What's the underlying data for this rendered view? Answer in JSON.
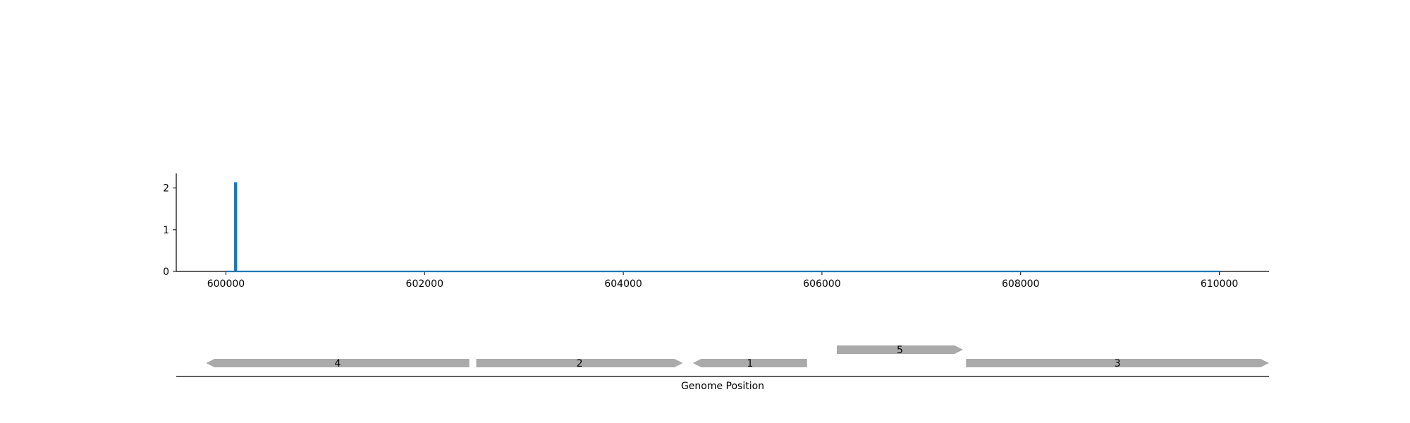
{
  "chart_data": [
    {
      "type": "line",
      "title": "",
      "xlabel": "",
      "ylabel": "",
      "xlim": [
        599500,
        610500
      ],
      "ylim": [
        0,
        2.35
      ],
      "x_ticks": [
        600000,
        602000,
        604000,
        606000,
        608000,
        610000
      ],
      "y_ticks": [
        0,
        1,
        2
      ],
      "grid": false,
      "series": [
        {
          "color": "#1f77b4",
          "points": [
            [
              600000,
              0
            ],
            [
              600090,
              0
            ],
            [
              600090,
              2.12
            ],
            [
              600105,
              2.12
            ],
            [
              600105,
              0
            ],
            [
              610000,
              0
            ]
          ]
        }
      ]
    },
    {
      "type": "gene_track",
      "xlabel": "Genome Position",
      "xlim": [
        599500,
        610500
      ],
      "gene_color": "#aaaaaa",
      "genes": [
        {
          "label": "4",
          "start": 599800,
          "end": 602450,
          "strand": "-",
          "row": 0
        },
        {
          "label": "2",
          "start": 602520,
          "end": 604600,
          "strand": "+",
          "row": 0
        },
        {
          "label": "1",
          "start": 604700,
          "end": 605850,
          "strand": "-",
          "row": 0
        },
        {
          "label": "5",
          "start": 606150,
          "end": 607420,
          "strand": "+",
          "row": 1
        },
        {
          "label": "3",
          "start": 607450,
          "end": 610500,
          "strand": "+",
          "row": 0
        }
      ]
    }
  ]
}
